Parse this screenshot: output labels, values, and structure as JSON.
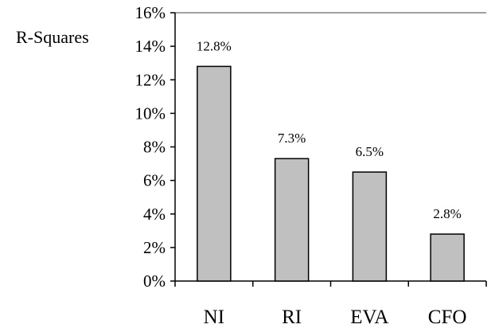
{
  "chart_data": {
    "type": "bar",
    "title": "",
    "xlabel": "",
    "ylabel": "R-Squares",
    "categories": [
      "NI",
      "RI",
      "EVA",
      "CFO"
    ],
    "values": [
      12.8,
      7.3,
      6.5,
      2.8
    ],
    "data_labels": [
      "12.8%",
      "7.3%",
      "6.5%",
      "2.8%"
    ],
    "ylim": [
      0,
      16
    ],
    "yticks": [
      0,
      2,
      4,
      6,
      8,
      10,
      12,
      14,
      16
    ],
    "ytick_labels": [
      "0%",
      "2%",
      "4%",
      "6%",
      "8%",
      "10%",
      "12%",
      "14%",
      "16%"
    ],
    "grid": false,
    "legend": "none",
    "bar_color": "#c0c0c0",
    "bar_edge_color": "#000000"
  }
}
